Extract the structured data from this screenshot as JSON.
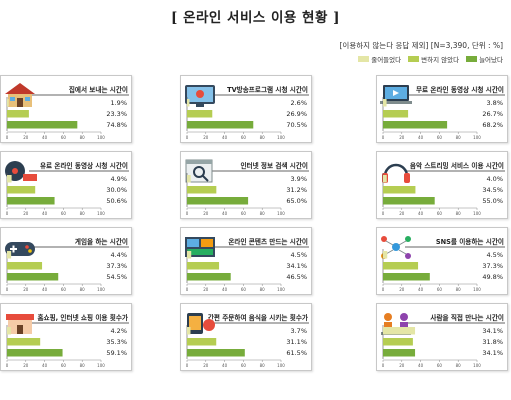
{
  "title": "[ 온라인 서비스 이용 현황 ]",
  "note": "[이용하지 않는다 응답 제외] [N=3,390, 단위 : %]",
  "legend": [
    {
      "label": "줄어들었다",
      "color": "#e4e6a6"
    },
    {
      "label": "변하지 않았다",
      "color": "#b5cd52"
    },
    {
      "label": "늘어났다",
      "color": "#77ac3b"
    }
  ],
  "icons": [
    "house-icon",
    "tv-icon",
    "laptop-video-icon",
    "film-reel-icon",
    "search-browser-icon",
    "headphones-icon",
    "gamepad-icon",
    "video-editing-icon",
    "social-network-icon",
    "shopping-store-icon",
    "food-delivery-icon",
    "people-meeting-icon"
  ],
  "chart_data": [
    {
      "type": "bar",
      "title": "집에서 보내는 시간이",
      "categories": [
        "줄어들었다",
        "변하지 않았다",
        "늘어났다"
      ],
      "values": [
        1.9,
        23.3,
        74.8
      ],
      "ylim": [
        0,
        100
      ],
      "tick_labels": [
        "0",
        "20",
        "40",
        "60",
        "80",
        "100"
      ]
    },
    {
      "type": "bar",
      "title": "TV방송프로그램 시청 시간이",
      "categories": [
        "줄어들었다",
        "변하지 않았다",
        "늘어났다"
      ],
      "values": [
        2.6,
        26.9,
        70.5
      ],
      "ylim": [
        0,
        100
      ],
      "tick_labels": [
        "0",
        "20",
        "40",
        "60",
        "80",
        "100"
      ]
    },
    {
      "type": "bar",
      "title": "무료 온라인 동영상 시청 시간이",
      "categories": [
        "줄어들었다",
        "변하지 않았다",
        "늘어났다"
      ],
      "values": [
        3.8,
        26.7,
        68.2
      ],
      "ylim": [
        0,
        100
      ],
      "tick_labels": [
        "0",
        "20",
        "40",
        "60",
        "80",
        "100"
      ]
    },
    {
      "type": "bar",
      "title": "유료 온라인 동영상 시청 시간이",
      "categories": [
        "줄어들었다",
        "변하지 않았다",
        "늘어났다"
      ],
      "values": [
        4.9,
        30.0,
        50.6
      ],
      "ylim": [
        0,
        100
      ],
      "tick_labels": [
        "0",
        "20",
        "40",
        "60",
        "80",
        "100"
      ]
    },
    {
      "type": "bar",
      "title": "인터넷 정보 검색 시간이",
      "categories": [
        "줄어들었다",
        "변하지 않았다",
        "늘어났다"
      ],
      "values": [
        3.9,
        31.2,
        65.0
      ],
      "ylim": [
        0,
        100
      ],
      "tick_labels": [
        "0",
        "20",
        "40",
        "60",
        "80",
        "100"
      ]
    },
    {
      "type": "bar",
      "title": "음악 스트리밍 서비스 이용 시간이",
      "categories": [
        "줄어들었다",
        "변하지 않았다",
        "늘어났다"
      ],
      "values": [
        4.0,
        34.5,
        55.0
      ],
      "ylim": [
        0,
        100
      ],
      "tick_labels": [
        "0",
        "20",
        "40",
        "60",
        "80",
        "100"
      ]
    },
    {
      "type": "bar",
      "title": "게임을 하는 시간이",
      "categories": [
        "줄어들었다",
        "변하지 않았다",
        "늘어났다"
      ],
      "values": [
        4.4,
        37.3,
        54.5
      ],
      "ylim": [
        0,
        100
      ],
      "tick_labels": [
        "0",
        "20",
        "40",
        "60",
        "80",
        "100"
      ]
    },
    {
      "type": "bar",
      "title": "온라인 콘텐츠 만드는 시간이",
      "categories": [
        "줄어들었다",
        "변하지 않았다",
        "늘어났다"
      ],
      "values": [
        4.5,
        34.1,
        46.5
      ],
      "ylim": [
        0,
        100
      ],
      "tick_labels": [
        "0",
        "20",
        "40",
        "60",
        "80",
        "100"
      ]
    },
    {
      "type": "bar",
      "title": "SNS를 이용하는 시간이",
      "categories": [
        "줄어들었다",
        "변하지 않았다",
        "늘어났다"
      ],
      "values": [
        4.5,
        37.3,
        49.8
      ],
      "ylim": [
        0,
        100
      ],
      "tick_labels": [
        "0",
        "20",
        "40",
        "60",
        "80",
        "100"
      ]
    },
    {
      "type": "bar",
      "title": "홈쇼핑, 인터넷 쇼핑 이용 횟수가",
      "categories": [
        "줄어들었다",
        "변하지 않았다",
        "늘어났다"
      ],
      "values": [
        4.2,
        35.3,
        59.1
      ],
      "ylim": [
        0,
        100
      ],
      "tick_labels": [
        "0",
        "20",
        "40",
        "60",
        "80",
        "100"
      ]
    },
    {
      "type": "bar",
      "title": "간편 주문하여 음식을 시키는 횟수가",
      "categories": [
        "줄어들었다",
        "변하지 않았다",
        "늘어났다"
      ],
      "values": [
        3.7,
        31.1,
        61.5
      ],
      "ylim": [
        0,
        100
      ],
      "tick_labels": [
        "0",
        "20",
        "40",
        "60",
        "80",
        "100"
      ]
    },
    {
      "type": "bar",
      "title": "사람을 직접 만나는 시간이",
      "categories": [
        "줄어들었다",
        "변하지 않았다",
        "늘어났다"
      ],
      "values": [
        34.1,
        31.8,
        34.1
      ],
      "ylim": [
        0,
        100
      ],
      "tick_labels": [
        "0",
        "20",
        "40",
        "60",
        "80",
        "100"
      ]
    }
  ]
}
